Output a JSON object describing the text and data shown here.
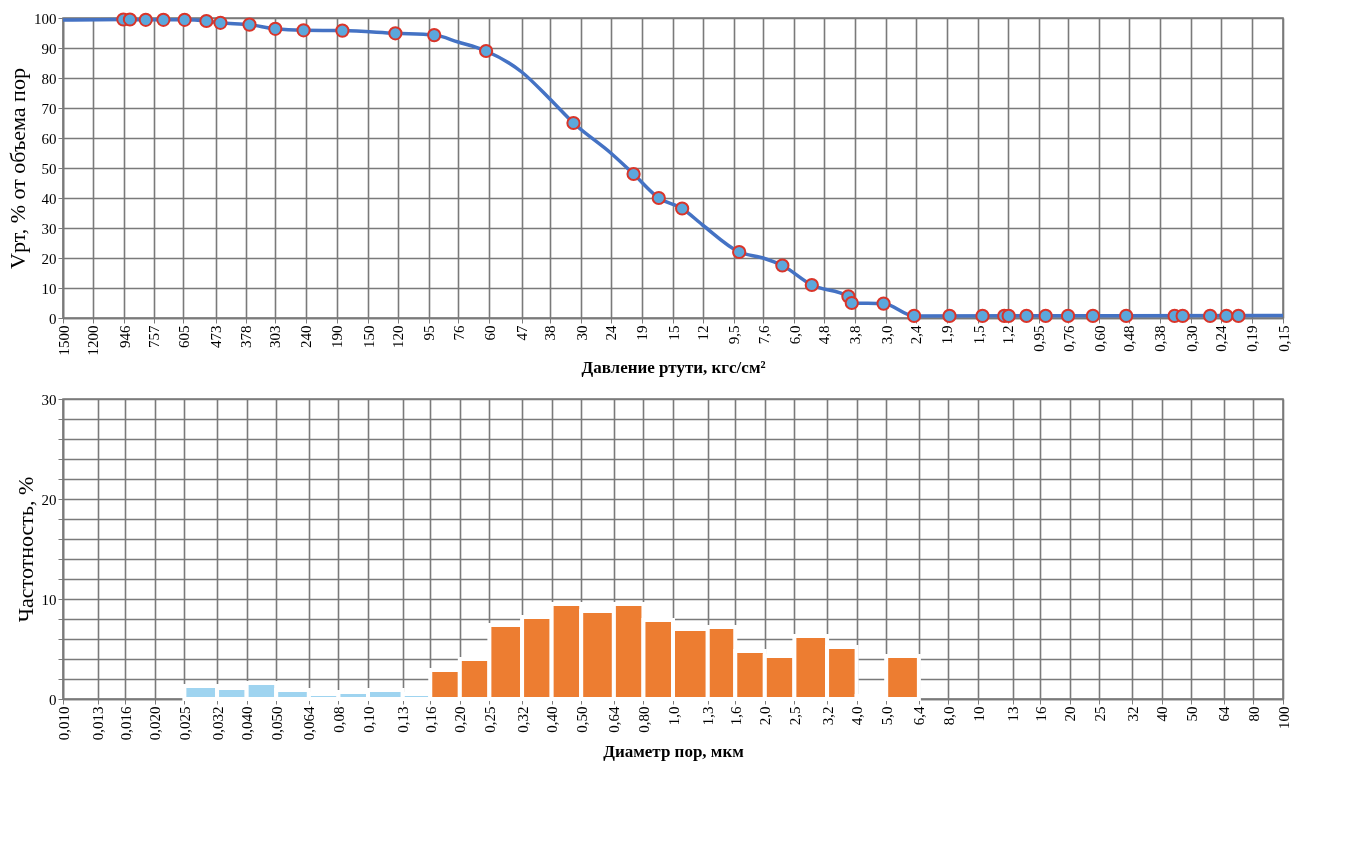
{
  "chart_data": [
    {
      "type": "line",
      "xlabel": "Давление ртути, кгс/см²",
      "ylabel": "Vрт, % от объема пор",
      "log": "x",
      "grid": true,
      "xlim": [
        1500,
        0.15
      ],
      "ylim": [
        0,
        100
      ],
      "xticks": [
        1500,
        1200,
        946,
        757,
        605,
        473,
        378,
        303,
        240,
        190,
        150,
        120,
        95,
        76,
        60,
        47,
        38,
        30,
        24,
        19,
        15,
        12,
        {
          "value": 9.5,
          "label": "9,5"
        },
        {
          "value": 7.6,
          "label": "7,6"
        },
        {
          "value": 6.0,
          "label": "6,0"
        },
        {
          "value": 4.8,
          "label": "4,8"
        },
        {
          "value": 3.8,
          "label": "3,8"
        },
        {
          "value": 3.0,
          "label": "3,0"
        },
        {
          "value": 2.4,
          "label": "2,4"
        },
        {
          "value": 1.9,
          "label": "1,9"
        },
        {
          "value": 1.5,
          "label": "1,5"
        },
        {
          "value": 1.2,
          "label": "1,2"
        },
        {
          "value": 0.95,
          "label": "0,95"
        },
        {
          "value": 0.76,
          "label": "0,76"
        },
        {
          "value": 0.6,
          "label": "0,60"
        },
        {
          "value": 0.48,
          "label": "0,48"
        },
        {
          "value": 0.38,
          "label": "0,38"
        },
        {
          "value": 0.3,
          "label": "0,30"
        },
        {
          "value": 0.24,
          "label": "0,24"
        },
        {
          "value": 0.19,
          "label": "0,19"
        },
        {
          "value": 0.15,
          "label": "0,15"
        }
      ],
      "yticks": [
        0,
        10,
        20,
        30,
        40,
        50,
        60,
        70,
        80,
        90,
        100
      ],
      "series": [
        {
          "type": "line",
          "color": "#4472c4",
          "line_style": "solid",
          "marker": "none",
          "x": [
            1500,
            951,
            905,
            803,
            703,
            599,
            508,
            457,
            367,
            302,
            244,
            182,
            122,
            91,
            76,
            61.5,
            47,
            38,
            31.8,
            24,
            20.2,
            16.7,
            14,
            12,
            9.1,
            7.6,
            6.57,
            5.26,
            3.99,
            3.89,
            3.06,
            2.43,
            0.15
          ],
          "values": [
            99.3,
            99.5,
            99.5,
            99.4,
            99.4,
            99.4,
            99,
            98.4,
            97.8,
            96.4,
            95.9,
            95.8,
            94.9,
            94.3,
            92,
            89,
            82,
            73,
            65,
            55,
            48,
            40,
            36.5,
            31,
            22,
            20,
            17.5,
            11,
            7.2,
            5,
            4.8,
            0.7,
            0.8
          ]
        },
        {
          "type": "scatter",
          "color": "#5ba7dc",
          "marker": "circle",
          "x": [
            951,
            905,
            803,
            703,
            599,
            508,
            457,
            367,
            302,
            244,
            182,
            122,
            91,
            61.5,
            31.8,
            20.2,
            16.7,
            14,
            9.1,
            6.57,
            5.26,
            3.99,
            3.89,
            3.06,
            2.43,
            1.86,
            1.45,
            1.23,
            1.19,
            1.04,
            0.9,
            0.76,
            0.63,
            0.49,
            0.34,
            0.32,
            0.26,
            0.23,
            0.21
          ],
          "values": [
            99.5,
            99.5,
            99.4,
            99.4,
            99.4,
            99,
            98.4,
            97.8,
            96.4,
            95.9,
            95.8,
            94.9,
            94.3,
            89,
            65,
            48,
            40,
            36.5,
            22,
            17.5,
            11,
            7.2,
            5,
            4.8,
            0.7,
            0.7,
            0.7,
            0.7,
            0.7,
            0.7,
            0.7,
            0.7,
            0.7,
            0.7,
            0.7,
            0.7,
            0.7,
            0.7,
            0.7
          ]
        }
      ]
    },
    {
      "type": "histogram",
      "xlabel": "Диаметр пор, мкм",
      "ylabel": "Частотность, %",
      "log": "x",
      "grid": true,
      "xlim": [
        0.01,
        100
      ],
      "ylim": [
        0,
        30
      ],
      "xticks": [
        {
          "value": 0.01,
          "label": "0,010"
        },
        {
          "value": 0.013,
          "label": "0,013"
        },
        {
          "value": 0.016,
          "label": "0,016"
        },
        {
          "value": 0.02,
          "label": "0,020"
        },
        {
          "value": 0.025,
          "label": "0,025"
        },
        {
          "value": 0.032,
          "label": "0,032"
        },
        {
          "value": 0.04,
          "label": "0,040"
        },
        {
          "value": 0.05,
          "label": "0,050"
        },
        {
          "value": 0.064,
          "label": "0,064"
        },
        {
          "value": 0.08,
          "label": "0,08"
        },
        {
          "value": 0.1,
          "label": "0,10"
        },
        {
          "value": 0.13,
          "label": "0,13"
        },
        {
          "value": 0.16,
          "label": "0,16"
        },
        {
          "value": 0.2,
          "label": "0,20"
        },
        {
          "value": 0.25,
          "label": "0,25"
        },
        {
          "value": 0.32,
          "label": "0,32"
        },
        {
          "value": 0.4,
          "label": "0,40"
        },
        {
          "value": 0.5,
          "label": "0,50"
        },
        {
          "value": 0.64,
          "label": "0,64"
        },
        {
          "value": 0.8,
          "label": "0,80"
        },
        {
          "value": 1.0,
          "label": "1,0"
        },
        {
          "value": 1.3,
          "label": "1,3"
        },
        {
          "value": 1.6,
          "label": "1,6"
        },
        {
          "value": 2.0,
          "label": "2,0"
        },
        {
          "value": 2.5,
          "label": "2,5"
        },
        {
          "value": 3.2,
          "label": "3,2"
        },
        {
          "value": 4.0,
          "label": "4,0"
        },
        {
          "value": 5.0,
          "label": "5,0"
        },
        {
          "value": 6.4,
          "label": "6,4"
        },
        {
          "value": 8.0,
          "label": "8,0"
        },
        10,
        13,
        16,
        20,
        25,
        32,
        40,
        50,
        64,
        80,
        100
      ],
      "yticks": [
        0,
        {
          "value": 2,
          "label": null
        },
        {
          "value": 4,
          "label": null
        },
        {
          "value": 6,
          "label": null
        },
        {
          "value": 8,
          "label": null
        },
        10,
        {
          "value": 12,
          "label": null
        },
        {
          "value": 14,
          "label": null
        },
        {
          "value": 16,
          "label": null
        },
        {
          "value": 18,
          "label": null
        },
        20,
        {
          "value": 22,
          "label": null
        },
        {
          "value": 24,
          "label": null
        },
        {
          "value": 26,
          "label": null
        },
        {
          "value": 28,
          "label": null
        },
        30
      ],
      "bins": [
        0.025,
        0.032,
        0.04,
        0.05,
        0.064,
        0.08,
        0.1,
        0.13,
        0.16,
        0.2,
        0.25,
        0.32,
        0.4,
        0.5,
        0.64,
        0.8,
        1.0,
        1.3,
        1.6,
        2.0,
        2.5,
        3.2,
        4.0,
        5.0,
        6.4
      ],
      "values": [
        1.3,
        1.1,
        1.6,
        0.9,
        0.5,
        0.7,
        0.9,
        0.5,
        2.9,
        4.0,
        7.4,
        8.2,
        9.5,
        8.8,
        9.5,
        7.9,
        7.0,
        7.2,
        4.8,
        4.3,
        6.3,
        5.2,
        0.3,
        4.3
      ],
      "colors": [
        "#9fd4f0",
        "#9fd4f0",
        "#9fd4f0",
        "#9fd4f0",
        "#9fd4f0",
        "#9fd4f0",
        "#9fd4f0",
        "#9fd4f0",
        "#ed7d31",
        "#ed7d31",
        "#ed7d31",
        "#ed7d31",
        "#ed7d31",
        "#ed7d31",
        "#ed7d31",
        "#ed7d31",
        "#ed7d31",
        "#ed7d31",
        "#ed7d31",
        "#ed7d31",
        "#ed7d31",
        "#ed7d31",
        "#ed7d31",
        "#ed7d31"
      ]
    }
  ]
}
